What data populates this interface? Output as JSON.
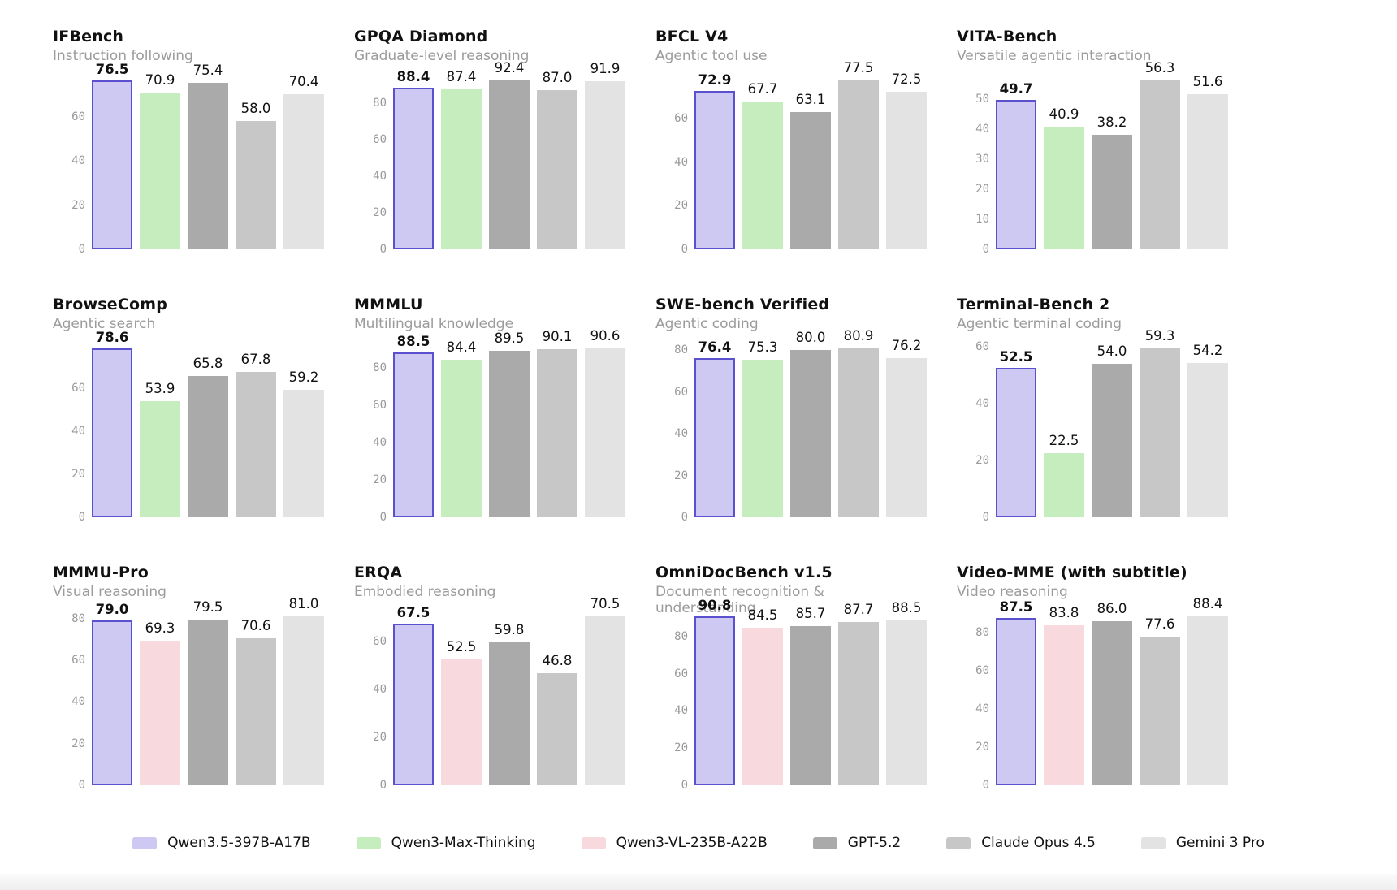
{
  "page": {
    "background": "#ffffff"
  },
  "models": {
    "Qwen3.5-397B-A17B": {
      "fill": "#cdc9f2",
      "border": "#5b51ce"
    },
    "Qwen3-Max-Thinking": {
      "fill": "#c6edbd"
    },
    "Qwen3-VL-235B-A22B": {
      "fill": "#f8d9dd"
    },
    "GPT-5.2": {
      "fill": "#aaaaaa"
    },
    "Claude Opus 4.5": {
      "fill": "#c7c7c7"
    },
    "Gemini 3 Pro": {
      "fill": "#e3e3e3"
    }
  },
  "legend": {
    "items": [
      "Qwen3.5-397B-A17B",
      "Qwen3-Max-Thinking",
      "Qwen3-VL-235B-A22B",
      "GPT-5.2",
      "Claude Opus 4.5",
      "Gemini 3 Pro"
    ]
  },
  "chart_data": [
    {
      "type": "bar",
      "title": "IFBench",
      "subtitle": "Instruction following",
      "categories": [
        "Qwen3.5-397B-A17B",
        "Qwen3-Max-Thinking",
        "GPT-5.2",
        "Claude Opus 4.5",
        "Gemini 3 Pro"
      ],
      "values": [
        76.5,
        70.9,
        75.4,
        58.0,
        70.4
      ],
      "yticks": [
        0,
        20,
        40,
        60
      ],
      "ylim": [
        0,
        82.8
      ],
      "grid": false
    },
    {
      "type": "bar",
      "title": "GPQA Diamond",
      "subtitle": "Graduate-level reasoning",
      "categories": [
        "Qwen3.5-397B-A17B",
        "Qwen3-Max-Thinking",
        "GPT-5.2",
        "Claude Opus 4.5",
        "Gemini 3 Pro"
      ],
      "values": [
        88.4,
        87.4,
        92.4,
        87.0,
        91.9
      ],
      "yticks": [
        0,
        20,
        40,
        60,
        80
      ],
      "ylim": [
        0,
        100.0
      ],
      "grid": false
    },
    {
      "type": "bar",
      "title": "BFCL V4",
      "subtitle": "Agentic tool use",
      "categories": [
        "Qwen3.5-397B-A17B",
        "Qwen3-Max-Thinking",
        "GPT-5.2",
        "Claude Opus 4.5",
        "Gemini 3 Pro"
      ],
      "values": [
        72.9,
        67.7,
        63.1,
        77.5,
        72.5
      ],
      "yticks": [
        0,
        20,
        40,
        60
      ],
      "ylim": [
        0,
        83.9
      ],
      "grid": false
    },
    {
      "type": "bar",
      "title": "VITA-Bench",
      "subtitle": "Versatile agentic interaction",
      "categories": [
        "Qwen3.5-397B-A17B",
        "Qwen3-Max-Thinking",
        "GPT-5.2",
        "Claude Opus 4.5",
        "Gemini 3 Pro"
      ],
      "values": [
        49.7,
        40.9,
        38.2,
        56.3,
        51.6
      ],
      "yticks": [
        0,
        10,
        20,
        30,
        40,
        50
      ],
      "ylim": [
        0,
        60.9
      ],
      "grid": false
    },
    {
      "type": "bar",
      "title": "BrowseComp",
      "subtitle": "Agentic search",
      "categories": [
        "Qwen3.5-397B-A17B",
        "Qwen3-Max-Thinking",
        "GPT-5.2",
        "Claude Opus 4.5",
        "Gemini 3 Pro"
      ],
      "values": [
        78.6,
        53.9,
        65.8,
        67.8,
        59.2
      ],
      "yticks": [
        0,
        20,
        40,
        60
      ],
      "ylim": [
        0,
        85.0
      ],
      "grid": false
    },
    {
      "type": "bar",
      "title": "MMMLU",
      "subtitle": "Multilingual knowledge",
      "categories": [
        "Qwen3.5-397B-A17B",
        "Qwen3-Max-Thinking",
        "GPT-5.2",
        "Claude Opus 4.5",
        "Gemini 3 Pro"
      ],
      "values": [
        88.5,
        84.4,
        89.5,
        90.1,
        90.6
      ],
      "yticks": [
        0,
        20,
        40,
        60,
        80
      ],
      "ylim": [
        0,
        98.0
      ],
      "grid": false
    },
    {
      "type": "bar",
      "title": "SWE-bench Verified",
      "subtitle": "Agentic coding",
      "categories": [
        "Qwen3.5-397B-A17B",
        "Qwen3-Max-Thinking",
        "GPT-5.2",
        "Claude Opus 4.5",
        "Gemini 3 Pro"
      ],
      "values": [
        76.4,
        75.3,
        80.0,
        80.9,
        76.2
      ],
      "yticks": [
        0,
        20,
        40,
        60,
        80
      ],
      "ylim": [
        0,
        87.5
      ],
      "grid": false
    },
    {
      "type": "bar",
      "title": "Terminal-Bench 2",
      "subtitle": "Agentic terminal coding",
      "categories": [
        "Qwen3.5-397B-A17B",
        "Qwen3-Max-Thinking",
        "GPT-5.2",
        "Claude Opus 4.5",
        "Gemini 3 Pro"
      ],
      "values": [
        52.5,
        22.5,
        54.0,
        59.3,
        54.2
      ],
      "yticks": [
        0,
        20,
        40,
        60
      ],
      "ylim": [
        0,
        64.2
      ],
      "grid": false
    },
    {
      "type": "bar",
      "title": "MMMU-Pro",
      "subtitle": "Visual reasoning",
      "categories": [
        "Qwen3.5-397B-A17B",
        "Qwen3-VL-235B-A22B",
        "GPT-5.2",
        "Claude Opus 4.5",
        "Gemini 3 Pro"
      ],
      "values": [
        79.0,
        69.3,
        79.5,
        70.6,
        81.0
      ],
      "yticks": [
        0,
        20,
        40,
        60,
        80
      ],
      "ylim": [
        0,
        87.6
      ],
      "grid": false
    },
    {
      "type": "bar",
      "title": "ERQA",
      "subtitle": "Embodied reasoning",
      "categories": [
        "Qwen3.5-397B-A17B",
        "Qwen3-VL-235B-A22B",
        "GPT-5.2",
        "Claude Opus 4.5",
        "Gemini 3 Pro"
      ],
      "values": [
        67.5,
        52.5,
        59.8,
        46.8,
        70.5
      ],
      "yticks": [
        0,
        20,
        40,
        60
      ],
      "ylim": [
        0,
        76.3
      ],
      "grid": false
    },
    {
      "type": "bar",
      "title": "OmniDocBench v1.5",
      "subtitle": "Document recognition & understanding",
      "categories": [
        "Qwen3.5-397B-A17B",
        "Qwen3-VL-235B-A22B",
        "GPT-5.2",
        "Claude Opus 4.5",
        "Gemini 3 Pro"
      ],
      "values": [
        90.8,
        84.5,
        85.7,
        87.7,
        88.5
      ],
      "yticks": [
        0,
        20,
        40,
        60,
        80
      ],
      "ylim": [
        0,
        98.2
      ],
      "grid": false
    },
    {
      "type": "bar",
      "title": "Video-MME (with subtitle)",
      "subtitle": "Video reasoning",
      "categories": [
        "Qwen3.5-397B-A17B",
        "Qwen3-VL-235B-A22B",
        "GPT-5.2",
        "Claude Opus 4.5",
        "Gemini 3 Pro"
      ],
      "values": [
        87.5,
        83.8,
        86.0,
        77.6,
        88.4
      ],
      "yticks": [
        0,
        20,
        40,
        60,
        80
      ],
      "ylim": [
        0,
        95.6
      ],
      "grid": false
    }
  ]
}
